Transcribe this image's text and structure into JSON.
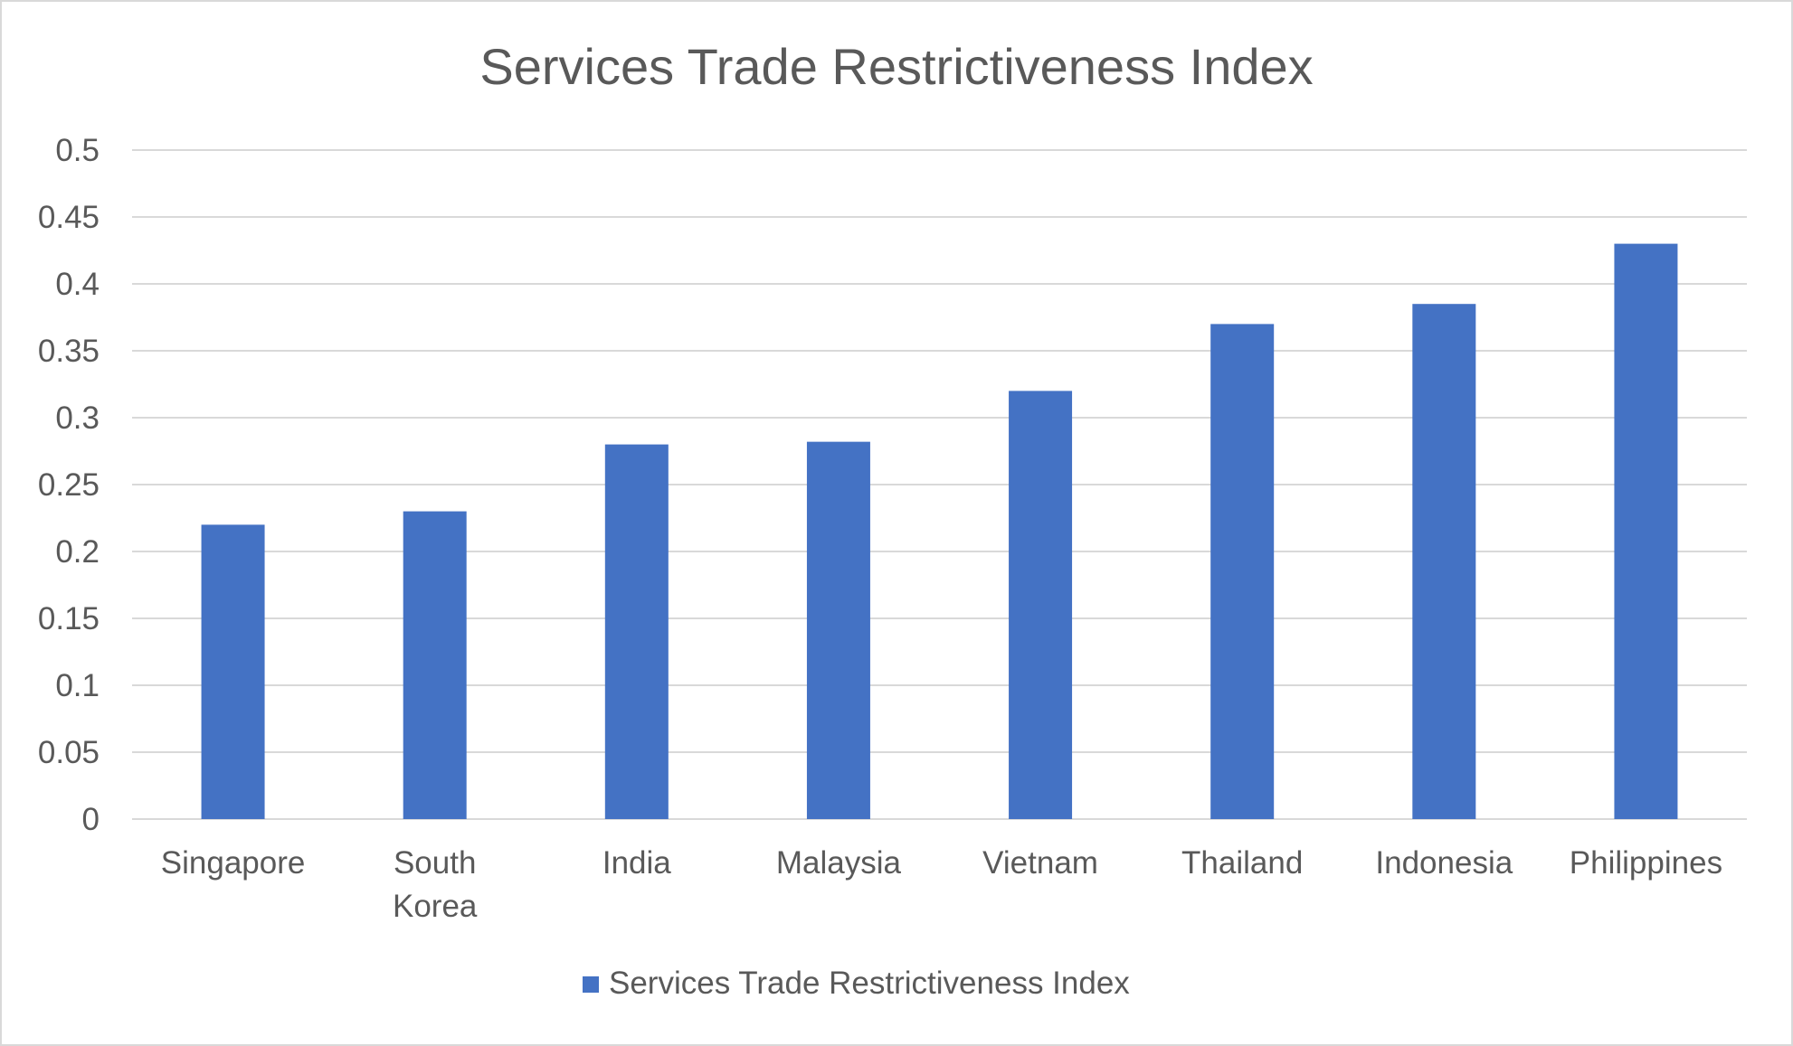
{
  "chart_data": {
    "type": "bar",
    "title": "Services Trade Restrictiveness Index",
    "xlabel": "",
    "ylabel": "",
    "categories": [
      "Singapore",
      "South Korea",
      "India",
      "Malaysia",
      "Vietnam",
      "Thailand",
      "Indonesia",
      "Philippines"
    ],
    "series": [
      {
        "name": "Services Trade Restrictiveness Index",
        "values": [
          0.22,
          0.23,
          0.28,
          0.282,
          0.32,
          0.37,
          0.385,
          0.43
        ],
        "color": "#4472c4"
      }
    ],
    "ylim": [
      0,
      0.5
    ],
    "yticks": [
      "0",
      "0.05",
      "0.1",
      "0.15",
      "0.2",
      "0.25",
      "0.3",
      "0.35",
      "0.4",
      "0.45",
      "0.5"
    ],
    "grid": true,
    "legend": "bottom"
  }
}
